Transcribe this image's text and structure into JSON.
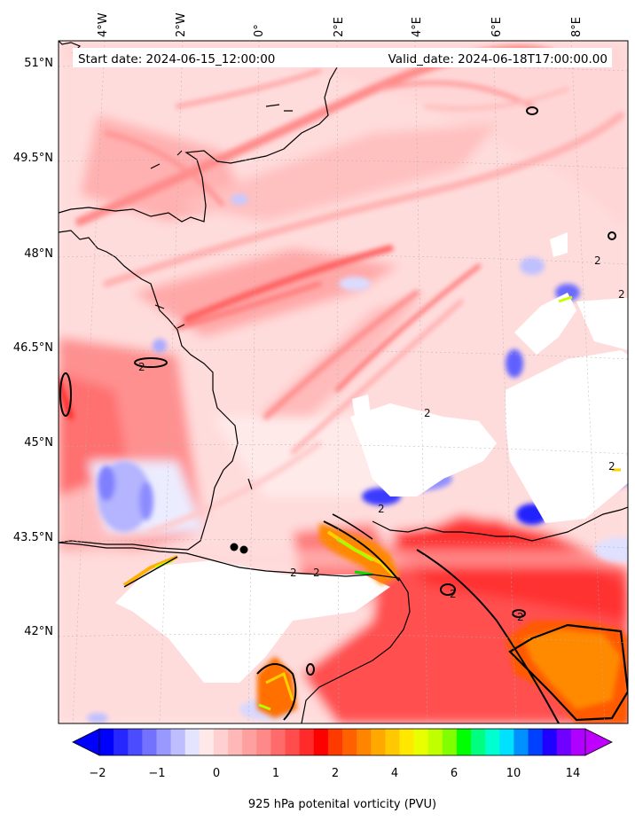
{
  "header": {
    "start_label": "Start date: 2024-06-15_12:00:00",
    "valid_label": "Valid_date: 2024-06-18T17:00:00.00"
  },
  "axes": {
    "lon_labels": [
      "4°W",
      "2°W",
      "0°",
      "2°E",
      "4°E",
      "6°E",
      "8°E"
    ],
    "lat_labels": [
      "51°N",
      "49.5°N",
      "48°N",
      "46.5°N",
      "45°N",
      "43.5°N",
      "42°N"
    ]
  },
  "contour_labels": [
    "2",
    "2",
    "2",
    "2",
    "2",
    "2",
    "2",
    "2",
    "2",
    "2"
  ],
  "colorbar": {
    "label": "925 hPa potenital vorticity (PVU)",
    "tick_labels": [
      "−2",
      "−1",
      "0",
      "1",
      "2",
      "4",
      "6",
      "10",
      "14"
    ],
    "colors": [
      "#0000ff",
      "#2626ff",
      "#4c4cff",
      "#7272ff",
      "#9898ff",
      "#bebeff",
      "#e4e4ff",
      "#ffe8e8",
      "#ffd0d0",
      "#ffb8b8",
      "#ffa0a0",
      "#ff8888",
      "#ff6a6a",
      "#ff4c4c",
      "#ff2a2a",
      "#ff0000",
      "#ff3a00",
      "#ff6000",
      "#ff8400",
      "#ffa800",
      "#ffc800",
      "#ffe800",
      "#e8ff00",
      "#c0ff00",
      "#80ff00",
      "#00ff00",
      "#00ff80",
      "#00ffd0",
      "#00e0ff",
      "#0090ff",
      "#0040ff",
      "#2000ff",
      "#7000ff",
      "#b000ff"
    ],
    "under_color": "#0000ff",
    "over_color": "#bf00ff"
  }
}
